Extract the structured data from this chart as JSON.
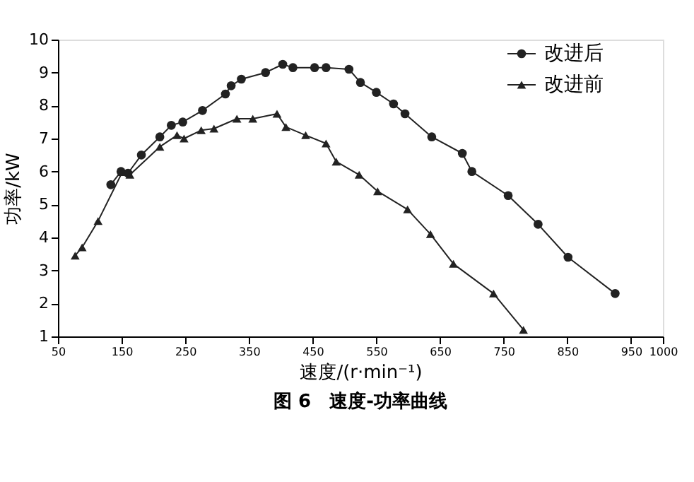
{
  "chart_data": {
    "type": "line",
    "xlabel": "速度/(r·min⁻¹)",
    "ylabel": "功率/kW",
    "annotations": [
      "图 6　速度-功率曲线"
    ],
    "xlim": [
      50,
      1000
    ],
    "xticks": [
      50,
      150,
      250,
      350,
      450,
      550,
      650,
      750,
      850,
      950,
      1000
    ],
    "ylim": [
      1,
      10
    ],
    "yticks": [
      1,
      2,
      3,
      4,
      5,
      6,
      7,
      8,
      9,
      10
    ],
    "grid": false,
    "legend": "top right",
    "line_style": "solid",
    "series": [
      {
        "name": "改进后",
        "color": "#222222",
        "marker": "circle",
        "x": [
          133,
          149,
          160,
          181,
          210,
          228,
          246,
          277,
          313,
          322,
          338,
          376,
          403,
          419,
          453,
          471,
          507,
          525,
          550,
          577,
          595,
          637,
          685,
          700,
          757,
          804,
          851,
          925
        ],
        "values": [
          5.6,
          6.0,
          5.95,
          6.5,
          7.05,
          7.4,
          7.5,
          7.85,
          8.35,
          8.6,
          8.8,
          9.0,
          9.25,
          9.15,
          9.15,
          9.15,
          9.1,
          8.7,
          8.4,
          8.05,
          7.75,
          7.05,
          6.55,
          6.0,
          5.27,
          4.4,
          3.4,
          2.3
        ]
      },
      {
        "name": "改进前",
        "color": "#222222",
        "marker": "triangle",
        "x": [
          77,
          88,
          113,
          151,
          163,
          210,
          237,
          248,
          275,
          295,
          331,
          356,
          394,
          408,
          439,
          471,
          487,
          523,
          552,
          599,
          635,
          671,
          734,
          781
        ],
        "values": [
          3.45,
          3.7,
          4.5,
          5.98,
          5.9,
          6.75,
          7.1,
          7.0,
          7.25,
          7.3,
          7.6,
          7.6,
          7.75,
          7.35,
          7.1,
          6.85,
          6.3,
          5.9,
          5.4,
          4.85,
          4.1,
          3.2,
          2.3,
          1.2
        ]
      }
    ]
  }
}
